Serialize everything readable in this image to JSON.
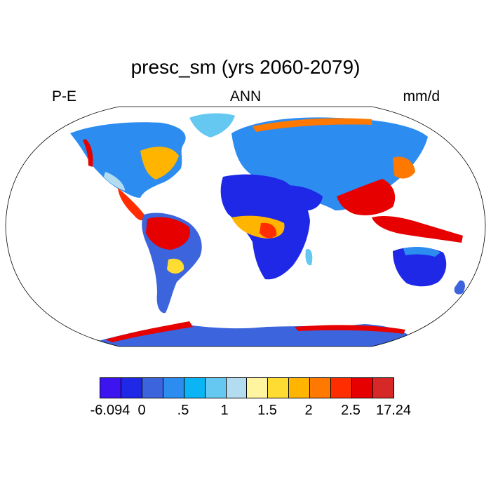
{
  "title": "presc_sm (yrs 2060-2079)",
  "subtitle": {
    "left": "P-E",
    "center": "ANN",
    "right": "mm/d"
  },
  "colorbar": {
    "colors": [
      "#3c14f0",
      "#1e28e6",
      "#3c64dc",
      "#2c8cf0",
      "#0ab4f5",
      "#64c8f0",
      "#b4dcf0",
      "#fff5a0",
      "#ffdc32",
      "#ffb400",
      "#ff7800",
      "#ff2d00",
      "#e60000",
      "#d72828"
    ],
    "labels": [
      "-6.094",
      "0",
      ".5",
      "1",
      "1.5",
      "2",
      "2.5",
      "17.24"
    ]
  },
  "map": {
    "ocean_color": "#ffffff",
    "outline_color": "#000000"
  }
}
